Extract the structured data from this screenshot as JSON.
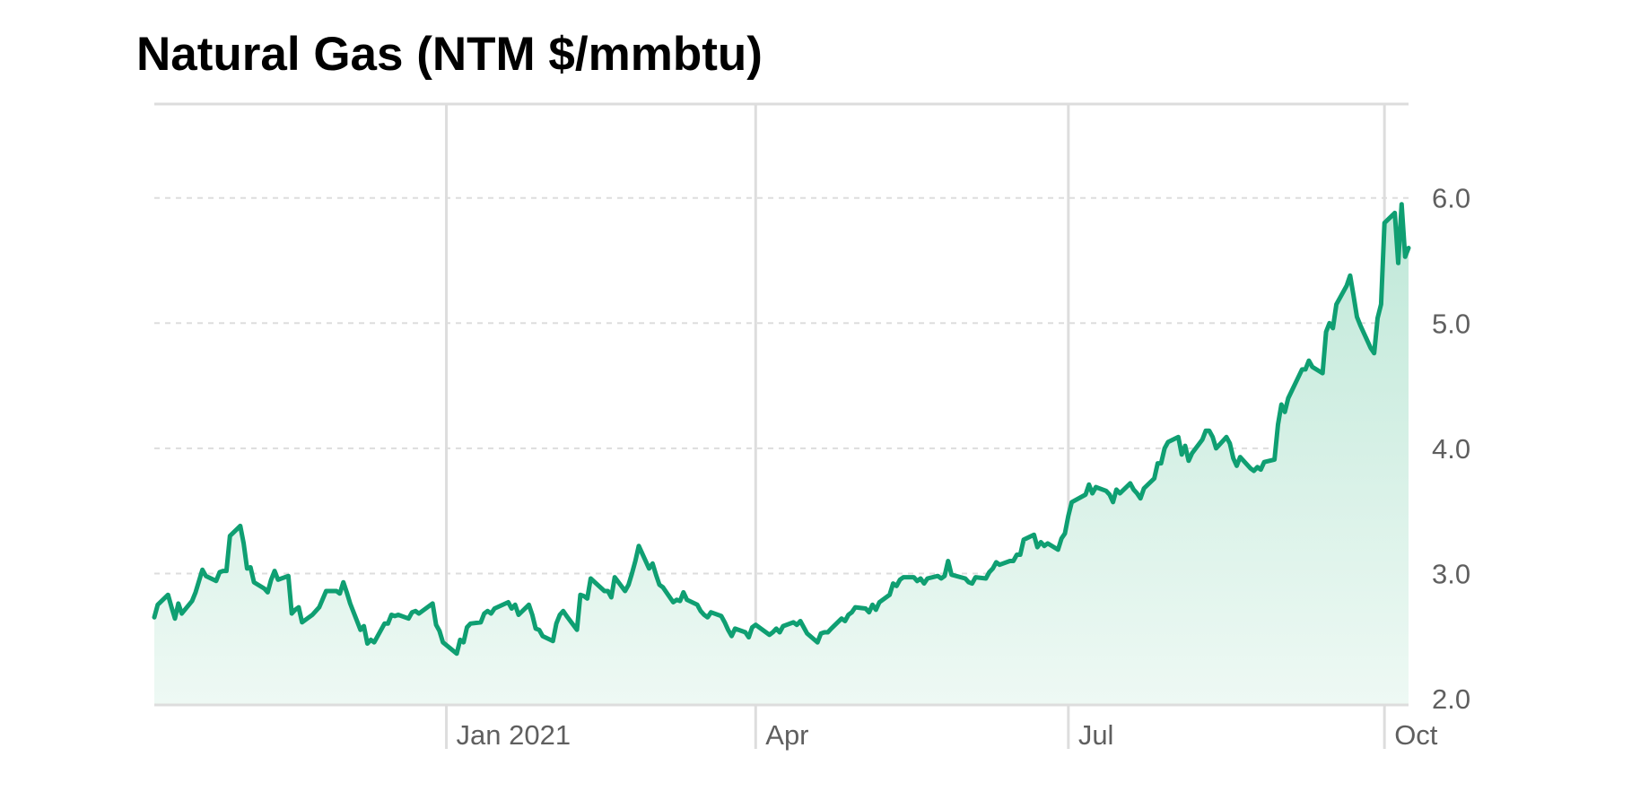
{
  "chart_data": {
    "type": "area",
    "title": "Natural Gas (NTM $/mmbtu)",
    "xlabel": "",
    "ylabel": "",
    "x_ticks": [
      {
        "label": "Jan 2021",
        "date": "2021-01-01"
      },
      {
        "label": "Apr",
        "date": "2021-04-01"
      },
      {
        "label": "Jul",
        "date": "2021-07-01"
      },
      {
        "label": "Oct",
        "date": "2021-10-01"
      }
    ],
    "y_ticks": [
      2.0,
      3.0,
      4.0,
      5.0,
      6.0
    ],
    "y_tick_labels": [
      "2.0",
      "3.0",
      "4.0",
      "5.0",
      "6.0"
    ],
    "xlim": [
      "2020-10-08",
      "2021-10-08"
    ],
    "ylim": [
      1.95,
      6.75
    ],
    "grid": {
      "x": true,
      "y": "dashed"
    },
    "y_axis_position": "right",
    "legend": "none",
    "colors": {
      "line": "#0f9f72",
      "fill_top": "#bfe8d8",
      "fill_bottom": "#eef9f4",
      "grid": "#dddddd"
    },
    "series": [
      {
        "x": [
          "2020-10-08",
          "2020-10-09",
          "2020-10-12",
          "2020-10-13",
          "2020-10-14",
          "2020-10-15",
          "2020-10-16",
          "2020-10-19",
          "2020-10-20",
          "2020-10-21",
          "2020-10-22",
          "2020-10-23",
          "2020-10-26",
          "2020-10-27",
          "2020-10-28",
          "2020-10-29",
          "2020-10-30",
          "2020-11-02",
          "2020-11-03",
          "2020-11-04",
          "2020-11-05",
          "2020-11-06",
          "2020-11-09",
          "2020-11-10",
          "2020-11-11",
          "2020-11-12",
          "2020-11-13",
          "2020-11-16",
          "2020-11-17",
          "2020-11-18",
          "2020-11-19",
          "2020-11-20",
          "2020-11-23",
          "2020-11-24",
          "2020-11-25",
          "2020-11-27",
          "2020-11-30",
          "2020-12-01",
          "2020-12-02",
          "2020-12-03",
          "2020-12-04",
          "2020-12-07",
          "2020-12-08",
          "2020-12-09",
          "2020-12-10",
          "2020-12-11",
          "2020-12-14",
          "2020-12-15",
          "2020-12-16",
          "2020-12-17",
          "2020-12-18",
          "2020-12-21",
          "2020-12-22",
          "2020-12-23",
          "2020-12-24",
          "2020-12-28",
          "2020-12-29",
          "2020-12-30",
          "2020-12-31",
          "2021-01-04",
          "2021-01-05",
          "2021-01-06",
          "2021-01-07",
          "2021-01-08",
          "2021-01-11",
          "2021-01-12",
          "2021-01-13",
          "2021-01-14",
          "2021-01-15",
          "2021-01-19",
          "2021-01-20",
          "2021-01-21",
          "2021-01-22",
          "2021-01-25",
          "2021-01-26",
          "2021-01-27",
          "2021-01-28",
          "2021-01-29",
          "2021-02-01",
          "2021-02-02",
          "2021-02-03",
          "2021-02-04",
          "2021-02-05",
          "2021-02-08",
          "2021-02-09",
          "2021-02-10",
          "2021-02-11",
          "2021-02-12",
          "2021-02-16",
          "2021-02-17",
          "2021-02-18",
          "2021-02-19",
          "2021-02-22",
          "2021-02-23",
          "2021-02-24",
          "2021-02-25",
          "2021-02-26",
          "2021-03-01",
          "2021-03-02",
          "2021-03-03",
          "2021-03-04",
          "2021-03-05",
          "2021-03-08",
          "2021-03-09",
          "2021-03-10",
          "2021-03-11",
          "2021-03-12",
          "2021-03-15",
          "2021-03-16",
          "2021-03-17",
          "2021-03-18",
          "2021-03-19",
          "2021-03-22",
          "2021-03-23",
          "2021-03-24",
          "2021-03-25",
          "2021-03-26",
          "2021-03-29",
          "2021-03-30",
          "2021-03-31",
          "2021-04-01",
          "2021-04-05",
          "2021-04-06",
          "2021-04-07",
          "2021-04-08",
          "2021-04-09",
          "2021-04-12",
          "2021-04-13",
          "2021-04-14",
          "2021-04-15",
          "2021-04-16",
          "2021-04-19",
          "2021-04-20",
          "2021-04-21",
          "2021-04-22",
          "2021-04-23",
          "2021-04-26",
          "2021-04-27",
          "2021-04-28",
          "2021-04-29",
          "2021-04-30",
          "2021-05-03",
          "2021-05-04",
          "2021-05-05",
          "2021-05-06",
          "2021-05-07",
          "2021-05-10",
          "2021-05-11",
          "2021-05-12",
          "2021-05-13",
          "2021-05-14",
          "2021-05-17",
          "2021-05-18",
          "2021-05-19",
          "2021-05-20",
          "2021-05-21",
          "2021-05-24",
          "2021-05-25",
          "2021-05-26",
          "2021-05-27",
          "2021-05-28",
          "2021-06-01",
          "2021-06-02",
          "2021-06-03",
          "2021-06-04",
          "2021-06-07",
          "2021-06-08",
          "2021-06-09",
          "2021-06-10",
          "2021-06-11",
          "2021-06-14",
          "2021-06-15",
          "2021-06-16",
          "2021-06-17",
          "2021-06-18",
          "2021-06-21",
          "2021-06-22",
          "2021-06-23",
          "2021-06-24",
          "2021-06-25",
          "2021-06-28",
          "2021-06-29",
          "2021-06-30",
          "2021-07-01",
          "2021-07-02",
          "2021-07-06",
          "2021-07-07",
          "2021-07-08",
          "2021-07-09",
          "2021-07-12",
          "2021-07-13",
          "2021-07-14",
          "2021-07-15",
          "2021-07-16",
          "2021-07-19",
          "2021-07-20",
          "2021-07-21",
          "2021-07-22",
          "2021-07-23",
          "2021-07-26",
          "2021-07-27",
          "2021-07-28",
          "2021-07-29",
          "2021-07-30",
          "2021-08-02",
          "2021-08-03",
          "2021-08-04",
          "2021-08-05",
          "2021-08-06",
          "2021-08-09",
          "2021-08-10",
          "2021-08-11",
          "2021-08-12",
          "2021-08-13",
          "2021-08-16",
          "2021-08-17",
          "2021-08-18",
          "2021-08-19",
          "2021-08-20",
          "2021-08-23",
          "2021-08-24",
          "2021-08-25",
          "2021-08-26",
          "2021-08-27",
          "2021-08-30",
          "2021-08-31",
          "2021-09-01",
          "2021-09-02",
          "2021-09-03",
          "2021-09-07",
          "2021-09-08",
          "2021-09-09",
          "2021-09-10",
          "2021-09-13",
          "2021-09-14",
          "2021-09-15",
          "2021-09-16",
          "2021-09-17",
          "2021-09-20",
          "2021-09-21",
          "2021-09-22",
          "2021-09-23",
          "2021-09-24",
          "2021-09-27",
          "2021-09-28",
          "2021-09-29",
          "2021-09-30",
          "2021-10-01",
          "2021-10-04",
          "2021-10-05",
          "2021-10-06",
          "2021-10-07",
          "2021-10-08"
        ],
        "values": [
          2.65,
          2.75,
          2.83,
          2.73,
          2.64,
          2.76,
          2.68,
          2.78,
          2.85,
          2.94,
          3.03,
          2.98,
          2.94,
          3.01,
          3.02,
          3.02,
          3.3,
          3.38,
          3.24,
          3.04,
          3.05,
          2.93,
          2.88,
          2.85,
          2.95,
          3.02,
          2.95,
          2.98,
          2.68,
          2.71,
          2.73,
          2.61,
          2.67,
          2.7,
          2.73,
          2.86,
          2.86,
          2.84,
          2.93,
          2.85,
          2.76,
          2.55,
          2.58,
          2.44,
          2.47,
          2.45,
          2.6,
          2.6,
          2.67,
          2.66,
          2.67,
          2.64,
          2.69,
          2.7,
          2.68,
          2.76,
          2.59,
          2.54,
          2.45,
          2.36,
          2.47,
          2.45,
          2.57,
          2.6,
          2.61,
          2.68,
          2.7,
          2.68,
          2.72,
          2.77,
          2.72,
          2.75,
          2.67,
          2.75,
          2.67,
          2.56,
          2.55,
          2.5,
          2.46,
          2.6,
          2.67,
          2.7,
          2.66,
          2.55,
          2.83,
          2.82,
          2.8,
          2.96,
          2.86,
          2.86,
          2.81,
          2.97,
          2.86,
          2.91,
          3.0,
          3.1,
          3.22,
          3.04,
          3.08,
          2.99,
          2.91,
          2.89,
          2.77,
          2.79,
          2.78,
          2.85,
          2.79,
          2.75,
          2.7,
          2.67,
          2.65,
          2.69,
          2.66,
          2.61,
          2.55,
          2.5,
          2.56,
          2.53,
          2.49,
          2.57,
          2.59,
          2.51,
          2.53,
          2.56,
          2.53,
          2.58,
          2.61,
          2.59,
          2.62,
          2.57,
          2.52,
          2.45,
          2.52,
          2.53,
          2.53,
          2.56,
          2.64,
          2.62,
          2.67,
          2.69,
          2.73,
          2.72,
          2.69,
          2.75,
          2.71,
          2.77,
          2.83,
          2.92,
          2.9,
          2.95,
          2.97,
          2.97,
          2.94,
          2.96,
          2.92,
          2.96,
          2.98,
          2.96,
          2.98,
          3.1,
          2.99,
          2.96,
          2.93,
          2.92,
          2.97,
          2.96,
          3.01,
          3.04,
          3.09,
          3.07,
          3.1,
          3.1,
          3.15,
          3.15,
          3.27,
          3.31,
          3.21,
          3.25,
          3.22,
          3.24,
          3.19,
          3.28,
          3.32,
          3.46,
          3.57,
          3.63,
          3.71,
          3.64,
          3.69,
          3.66,
          3.63,
          3.57,
          3.67,
          3.64,
          3.72,
          3.67,
          3.64,
          3.6,
          3.68,
          3.76,
          3.88,
          3.88,
          4.0,
          4.05,
          4.09,
          3.95,
          4.02,
          3.9,
          3.96,
          4.07,
          4.14,
          4.14,
          4.09,
          4.0,
          4.09,
          4.04,
          3.92,
          3.86,
          3.93,
          3.84,
          3.82,
          3.85,
          3.83,
          3.89,
          3.91,
          4.19,
          4.35,
          4.29,
          4.4,
          4.63,
          4.63,
          4.7,
          4.65,
          4.6,
          4.93,
          5.0,
          4.96,
          5.15,
          5.3,
          5.38,
          5.22,
          5.05,
          4.98,
          4.8,
          4.76,
          5.04,
          5.15,
          5.8,
          5.88,
          5.48,
          5.95,
          5.53,
          5.6
        ]
      }
    ]
  }
}
